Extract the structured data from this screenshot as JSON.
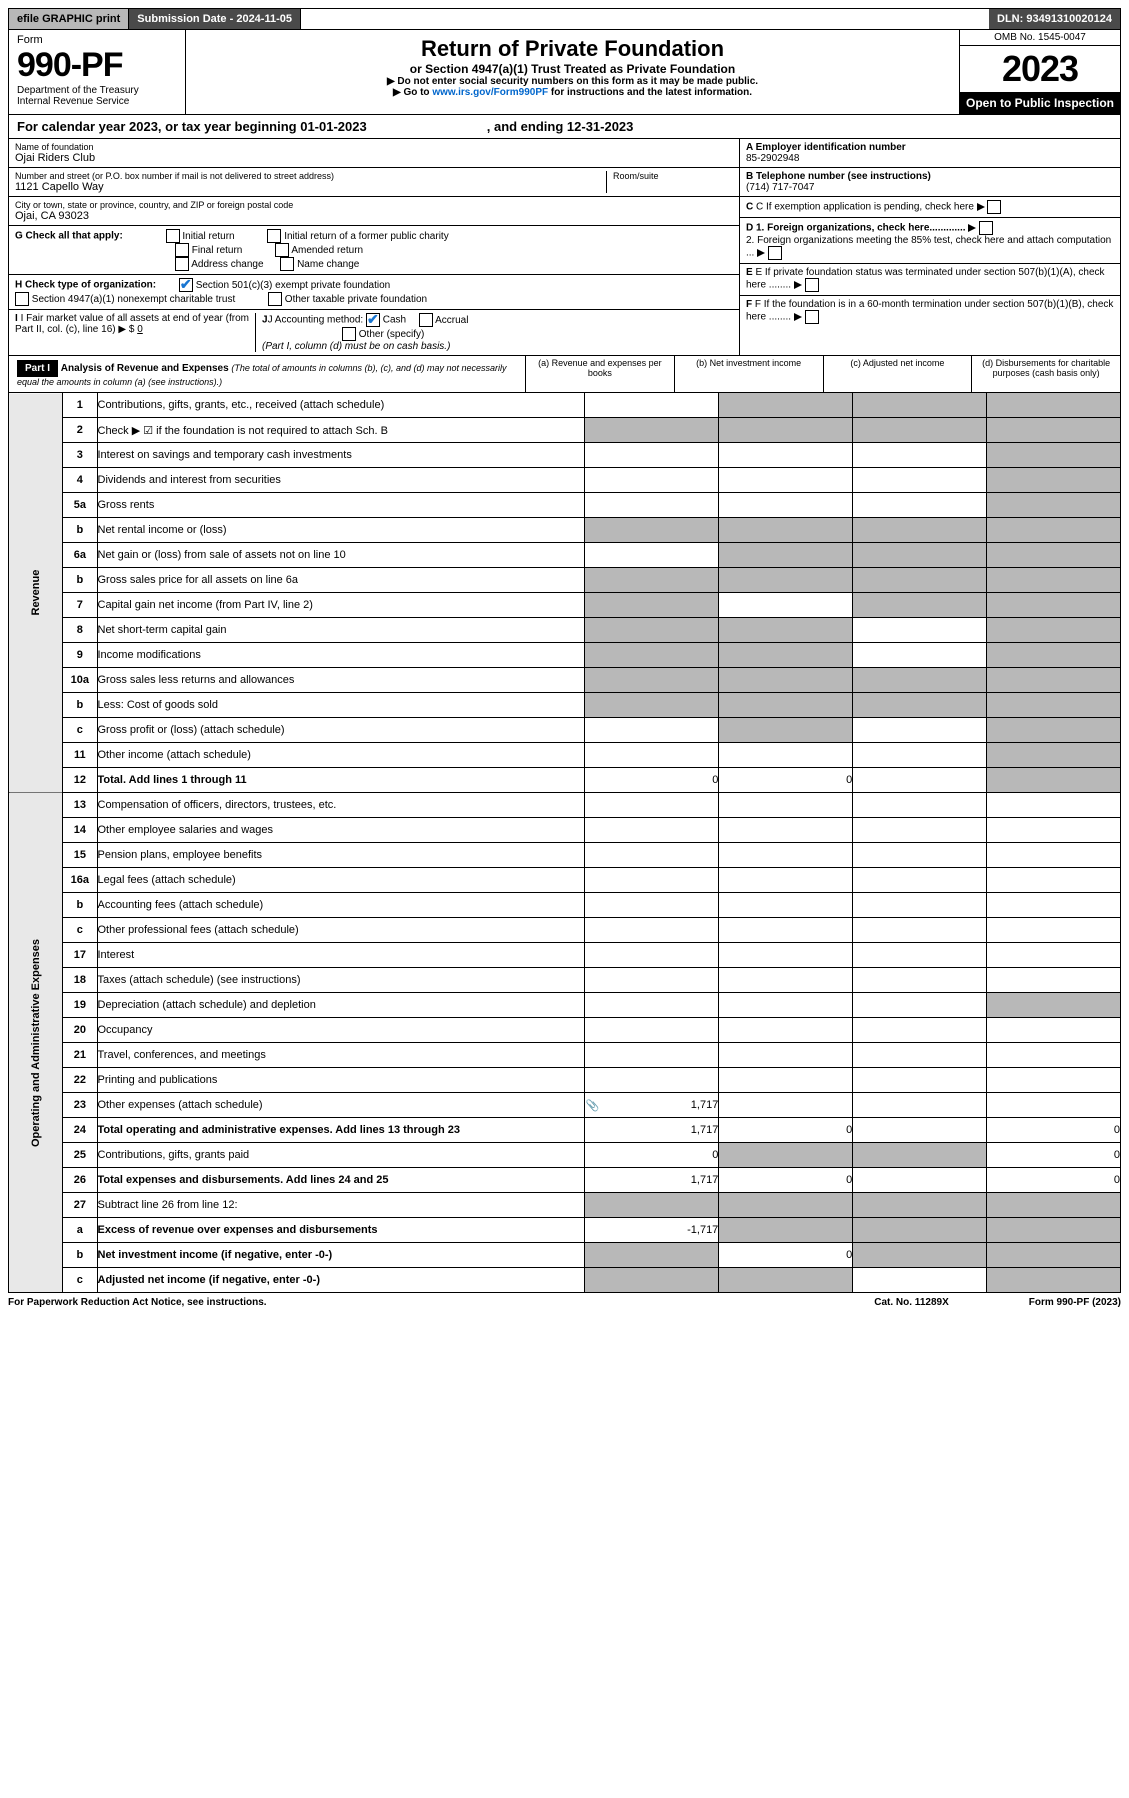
{
  "topbar": {
    "efile": "efile GRAPHIC print",
    "sub_label": "Submission Date - ",
    "sub_date": "2024-11-05",
    "dln": "DLN: 93491310020124"
  },
  "header": {
    "form_word": "Form",
    "form_no": "990-PF",
    "dept": "Department of the Treasury",
    "irs": "Internal Revenue Service",
    "title": "Return of Private Foundation",
    "sub": "or Section 4947(a)(1) Trust Treated as Private Foundation",
    "inst1": "▶ Do not enter social security numbers on this form as it may be made public.",
    "inst2_pre": "▶ Go to ",
    "inst2_link": "www.irs.gov/Form990PF",
    "inst2_post": " for instructions and the latest information.",
    "omb": "OMB No. 1545-0047",
    "year": "2023",
    "open": "Open to Public Inspection"
  },
  "cal": {
    "text": "For calendar year 2023, or tax year beginning 01-01-2023",
    "end": ", and ending 12-31-2023"
  },
  "info": {
    "name_label": "Name of foundation",
    "name": "Ojai Riders Club",
    "addr_label": "Number and street (or P.O. box number if mail is not delivered to street address)",
    "room_label": "Room/suite",
    "addr": "1121 Capello Way",
    "city_label": "City or town, state or province, country, and ZIP or foreign postal code",
    "city": "Ojai, CA  93023",
    "g_label": "G Check all that apply:",
    "g_opts": [
      "Initial return",
      "Initial return of a former public charity",
      "Final return",
      "Amended return",
      "Address change",
      "Name change"
    ],
    "h_label": "H Check type of organization:",
    "h1": "Section 501(c)(3) exempt private foundation",
    "h2": "Section 4947(a)(1) nonexempt charitable trust",
    "h3": "Other taxable private foundation",
    "i_label": "I Fair market value of all assets at end of year (from Part II, col. (c), line 16) ▶ $",
    "i_val": "0",
    "j_label": "J Accounting method:",
    "j_cash": "Cash",
    "j_acc": "Accrual",
    "j_other": "Other (specify)",
    "j_note": "(Part I, column (d) must be on cash basis.)",
    "a_label": "A Employer identification number",
    "a_val": "85-2902948",
    "b_label": "B Telephone number (see instructions)",
    "b_val": "(714) 717-7047",
    "c_label": "C If exemption application is pending, check here",
    "d1": "D 1. Foreign organizations, check here.............",
    "d2": "2. Foreign organizations meeting the 85% test, check here and attach computation ...",
    "e_label": "E If private foundation status was terminated under section 507(b)(1)(A), check here ........",
    "f_label": "F If the foundation is in a 60-month termination under section 507(b)(1)(B), check here ........"
  },
  "part": {
    "num": "Part I",
    "title": "Analysis of Revenue and Expenses",
    "note": "(The total of amounts in columns (b), (c), and (d) may not necessarily equal the amounts in column (a) (see instructions).)",
    "cols": [
      "(a) Revenue and expenses per books",
      "(b) Net investment income",
      "(c) Adjusted net income",
      "(d) Disbursements for charitable purposes (cash basis only)"
    ]
  },
  "sidebars": {
    "rev": "Revenue",
    "exp": "Operating and Administrative Expenses"
  },
  "rows": [
    {
      "n": "1",
      "d": "Contributions, gifts, grants, etc., received (attach schedule)",
      "g": [
        0,
        1,
        1,
        1
      ]
    },
    {
      "n": "2",
      "d": "Check ▶ ☑ if the foundation is not required to attach Sch. B",
      "g": [
        1,
        1,
        1,
        1
      ],
      "bold_frag": "not"
    },
    {
      "n": "3",
      "d": "Interest on savings and temporary cash investments",
      "g": [
        0,
        0,
        0,
        1
      ]
    },
    {
      "n": "4",
      "d": "Dividends and interest from securities",
      "g": [
        0,
        0,
        0,
        1
      ]
    },
    {
      "n": "5a",
      "d": "Gross rents",
      "g": [
        0,
        0,
        0,
        1
      ]
    },
    {
      "n": "b",
      "d": "Net rental income or (loss)",
      "g": [
        1,
        1,
        1,
        1
      ]
    },
    {
      "n": "6a",
      "d": "Net gain or (loss) from sale of assets not on line 10",
      "g": [
        0,
        1,
        1,
        1
      ]
    },
    {
      "n": "b",
      "d": "Gross sales price for all assets on line 6a",
      "g": [
        1,
        1,
        1,
        1
      ]
    },
    {
      "n": "7",
      "d": "Capital gain net income (from Part IV, line 2)",
      "g": [
        1,
        0,
        1,
        1
      ]
    },
    {
      "n": "8",
      "d": "Net short-term capital gain",
      "g": [
        1,
        1,
        0,
        1
      ]
    },
    {
      "n": "9",
      "d": "Income modifications",
      "g": [
        1,
        1,
        0,
        1
      ]
    },
    {
      "n": "10a",
      "d": "Gross sales less returns and allowances",
      "g": [
        1,
        1,
        1,
        1
      ]
    },
    {
      "n": "b",
      "d": "Less: Cost of goods sold",
      "g": [
        1,
        1,
        1,
        1
      ]
    },
    {
      "n": "c",
      "d": "Gross profit or (loss) (attach schedule)",
      "g": [
        0,
        1,
        0,
        1
      ]
    },
    {
      "n": "11",
      "d": "Other income (attach schedule)",
      "g": [
        0,
        0,
        0,
        1
      ]
    },
    {
      "n": "12",
      "d": "Total. Add lines 1 through 11",
      "bold": 1,
      "g": [
        0,
        0,
        0,
        1
      ],
      "a": "0",
      "b": "0"
    }
  ],
  "exp_rows": [
    {
      "n": "13",
      "d": "Compensation of officers, directors, trustees, etc.",
      "g": [
        0,
        0,
        0,
        0
      ]
    },
    {
      "n": "14",
      "d": "Other employee salaries and wages",
      "g": [
        0,
        0,
        0,
        0
      ]
    },
    {
      "n": "15",
      "d": "Pension plans, employee benefits",
      "g": [
        0,
        0,
        0,
        0
      ]
    },
    {
      "n": "16a",
      "d": "Legal fees (attach schedule)",
      "g": [
        0,
        0,
        0,
        0
      ]
    },
    {
      "n": "b",
      "d": "Accounting fees (attach schedule)",
      "g": [
        0,
        0,
        0,
        0
      ]
    },
    {
      "n": "c",
      "d": "Other professional fees (attach schedule)",
      "g": [
        0,
        0,
        0,
        0
      ]
    },
    {
      "n": "17",
      "d": "Interest",
      "g": [
        0,
        0,
        0,
        0
      ]
    },
    {
      "n": "18",
      "d": "Taxes (attach schedule) (see instructions)",
      "g": [
        0,
        0,
        0,
        0
      ]
    },
    {
      "n": "19",
      "d": "Depreciation (attach schedule) and depletion",
      "g": [
        0,
        0,
        0,
        1
      ]
    },
    {
      "n": "20",
      "d": "Occupancy",
      "g": [
        0,
        0,
        0,
        0
      ]
    },
    {
      "n": "21",
      "d": "Travel, conferences, and meetings",
      "g": [
        0,
        0,
        0,
        0
      ]
    },
    {
      "n": "22",
      "d": "Printing and publications",
      "g": [
        0,
        0,
        0,
        0
      ]
    },
    {
      "n": "23",
      "d": "Other expenses (attach schedule)",
      "g": [
        0,
        0,
        0,
        0
      ],
      "a": "1,717",
      "icon": 1
    },
    {
      "n": "24",
      "d": "Total operating and administrative expenses. Add lines 13 through 23",
      "bold": 1,
      "g": [
        0,
        0,
        0,
        0
      ],
      "a": "1,717",
      "b": "0",
      "dd": "0"
    },
    {
      "n": "25",
      "d": "Contributions, gifts, grants paid",
      "g": [
        0,
        1,
        1,
        0
      ],
      "a": "0",
      "dd": "0"
    },
    {
      "n": "26",
      "d": "Total expenses and disbursements. Add lines 24 and 25",
      "bold": 1,
      "g": [
        0,
        0,
        0,
        0
      ],
      "a": "1,717",
      "b": "0",
      "dd": "0"
    },
    {
      "n": "27",
      "d": "Subtract line 26 from line 12:",
      "g": [
        1,
        1,
        1,
        1
      ]
    },
    {
      "n": "a",
      "d": "Excess of revenue over expenses and disbursements",
      "bold": 1,
      "g": [
        0,
        1,
        1,
        1
      ],
      "a": "-1,717"
    },
    {
      "n": "b",
      "d": "Net investment income (if negative, enter -0-)",
      "bold": 1,
      "g": [
        1,
        0,
        1,
        1
      ],
      "b": "0"
    },
    {
      "n": "c",
      "d": "Adjusted net income (if negative, enter -0-)",
      "bold": 1,
      "g": [
        1,
        1,
        0,
        1
      ]
    }
  ],
  "footer": {
    "l": "For Paperwork Reduction Act Notice, see instructions.",
    "c": "Cat. No. 11289X",
    "r": "Form 990-PF (2023)"
  }
}
